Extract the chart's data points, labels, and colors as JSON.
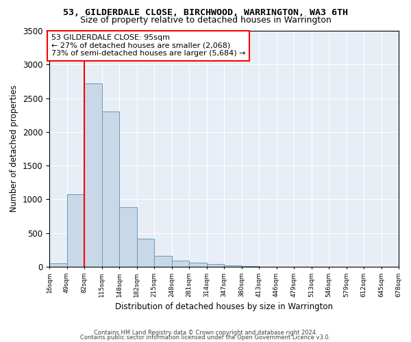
{
  "title": "53, GILDERDALE CLOSE, BIRCHWOOD, WARRINGTON, WA3 6TH",
  "subtitle": "Size of property relative to detached houses in Warrington",
  "xlabel": "Distribution of detached houses by size in Warrington",
  "ylabel": "Number of detached properties",
  "bar_color": "#c8d8e8",
  "bar_edge_color": "#6699bb",
  "bar_heights": [
    50,
    1080,
    2720,
    2300,
    880,
    420,
    165,
    95,
    60,
    45,
    25,
    15,
    5,
    2,
    1,
    0,
    0,
    0,
    0,
    0
  ],
  "bin_labels": [
    "16sqm",
    "49sqm",
    "82sqm",
    "115sqm",
    "148sqm",
    "182sqm",
    "215sqm",
    "248sqm",
    "281sqm",
    "314sqm",
    "347sqm",
    "380sqm",
    "413sqm",
    "446sqm",
    "479sqm",
    "513sqm",
    "546sqm",
    "579sqm",
    "612sqm",
    "645sqm",
    "678sqm"
  ],
  "ylim": [
    0,
    3500
  ],
  "yticks": [
    0,
    500,
    1000,
    1500,
    2000,
    2500,
    3000,
    3500
  ],
  "red_line_x": 1.5,
  "annotation_text": "53 GILDERDALE CLOSE: 95sqm\n← 27% of detached houses are smaller (2,068)\n73% of semi-detached houses are larger (5,684) →",
  "annotation_box_color": "white",
  "annotation_border_color": "red",
  "vline_color": "red",
  "footer_line1": "Contains HM Land Registry data © Crown copyright and database right 2024.",
  "footer_line2": "Contains public sector information licensed under the Open Government Licence v3.0.",
  "bg_color": "#ffffff",
  "plot_bg_color": "#e8eef5"
}
